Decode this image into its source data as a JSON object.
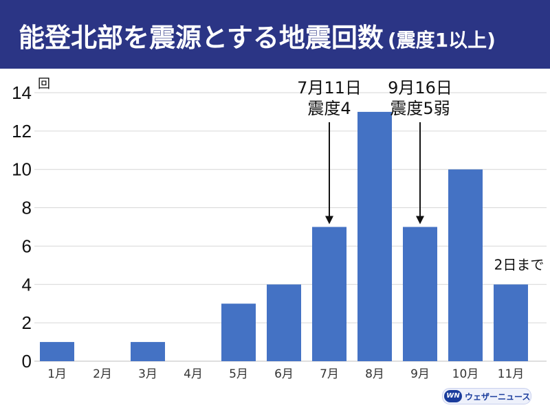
{
  "header": {
    "title": "能登北部を震源とする地震回数",
    "subtitle": "(震度1以上)"
  },
  "chart_data": {
    "type": "bar",
    "categories": [
      "1月",
      "2月",
      "3月",
      "4月",
      "5月",
      "6月",
      "7月",
      "8月",
      "9月",
      "10月",
      "11月"
    ],
    "values": [
      1,
      0,
      1,
      0,
      3,
      4,
      7,
      13,
      7,
      10,
      4
    ],
    "ylim": [
      0,
      14
    ],
    "yticks": [
      0,
      2,
      4,
      6,
      8,
      10,
      12,
      14
    ],
    "ylabel": "回",
    "xlabel": "",
    "bar_color": "#4472c4",
    "grid": true,
    "annotations": [
      {
        "category": "7月",
        "lines": [
          "7月11日",
          "震度4"
        ],
        "arrow": true
      },
      {
        "category": "9月",
        "lines": [
          "9月16日",
          "震度5弱"
        ],
        "arrow": true
      },
      {
        "category": "11月",
        "lines": [
          "2日まで"
        ],
        "arrow": false
      }
    ]
  },
  "logo": {
    "mark": "WN",
    "text": "ウェザーニュース"
  }
}
